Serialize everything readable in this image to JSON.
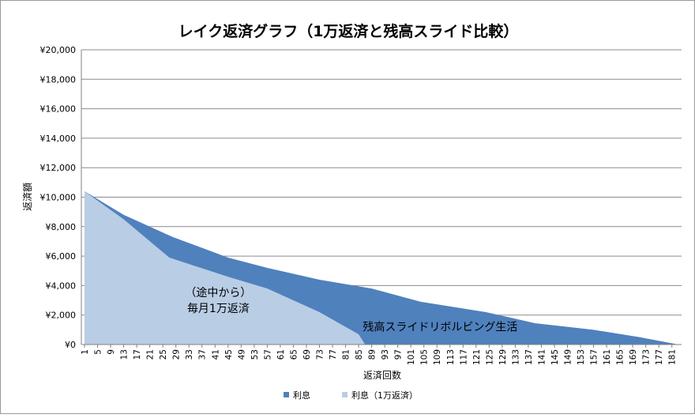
{
  "chart_data": {
    "type": "area",
    "title": "レイク返済グラフ（1万返済と残高スライド比較）",
    "xlabel": "返済回数",
    "ylabel": "返済額",
    "ylim": [
      0,
      20000
    ],
    "y_ticks": [
      0,
      2000,
      4000,
      6000,
      8000,
      10000,
      12000,
      14000,
      16000,
      18000,
      20000
    ],
    "y_tick_labels": [
      "¥0",
      "¥2,000",
      "¥4,000",
      "¥6,000",
      "¥8,000",
      "¥10,000",
      "¥12,000",
      "¥14,000",
      "¥16,000",
      "¥18,000",
      "¥20,000"
    ],
    "x_range": [
      1,
      183
    ],
    "x_tick_labels": [
      "1",
      "5",
      "9",
      "13",
      "17",
      "21",
      "25",
      "29",
      "33",
      "37",
      "41",
      "45",
      "49",
      "53",
      "57",
      "61",
      "65",
      "69",
      "73",
      "77",
      "81",
      "85",
      "89",
      "93",
      "97",
      "101",
      "105",
      "109",
      "113",
      "117",
      "121",
      "125",
      "129",
      "133",
      "137",
      "141",
      "145",
      "149",
      "153",
      "157",
      "161",
      "165",
      "169",
      "173",
      "177",
      "181"
    ],
    "grid": true,
    "legend_position": "bottom",
    "series": [
      {
        "name": "利息",
        "color": "#4f81bd",
        "points": [
          [
            1,
            10400
          ],
          [
            13,
            8800
          ],
          [
            28,
            7300
          ],
          [
            45,
            5900
          ],
          [
            57,
            5200
          ],
          [
            73,
            4400
          ],
          [
            89,
            3800
          ],
          [
            104,
            2900
          ],
          [
            124,
            2200
          ],
          [
            139,
            1450
          ],
          [
            157,
            1000
          ],
          [
            171,
            500
          ],
          [
            183,
            0
          ]
        ]
      },
      {
        "name": "利息（1万返済）",
        "color": "#b9cde5",
        "points": [
          [
            1,
            10400
          ],
          [
            13,
            8500
          ],
          [
            27,
            5900
          ],
          [
            45,
            4600
          ],
          [
            57,
            3800
          ],
          [
            73,
            2200
          ],
          [
            85,
            700
          ],
          [
            87,
            0
          ]
        ]
      }
    ],
    "annotations": [
      {
        "lines": [
          "（途中から）",
          "毎月1万返済"
        ],
        "at": [
          42,
          3000
        ]
      },
      {
        "lines": [
          "残高スライドリボルビング生活"
        ],
        "at": [
          110,
          1200
        ]
      }
    ]
  }
}
